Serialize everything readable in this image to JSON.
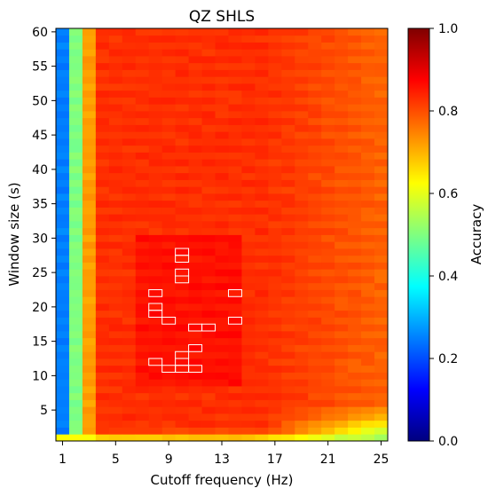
{
  "chart_data": {
    "type": "heatmap",
    "title": "QZ SHLS",
    "xlabel": "Cutoff frequency (Hz)",
    "ylabel": "Window size (s)",
    "colorbar_label": "Accuracy",
    "colormap": "jet",
    "x_range": [
      1,
      25
    ],
    "y_range": [
      1,
      60
    ],
    "x_ticks": [
      1,
      5,
      9,
      13,
      17,
      21,
      25
    ],
    "y_ticks": [
      5,
      10,
      15,
      20,
      25,
      30,
      35,
      40,
      45,
      50,
      55,
      60
    ],
    "color_range": [
      0.0,
      1.0
    ],
    "colorbar_ticks": [
      "0.0",
      "0.2",
      "0.4",
      "0.6",
      "0.8",
      "1.0"
    ],
    "approx_values": {
      "x1_column": 0.25,
      "x2_column": 0.5,
      "x3_column": 0.72,
      "plateau": 0.83,
      "best_region": 0.86,
      "high_frequency_low_window": 0.55,
      "y1_row": 0.68
    },
    "highlighted_cells": [
      [
        10,
        28
      ],
      [
        10,
        27
      ],
      [
        10,
        25
      ],
      [
        10,
        24
      ],
      [
        8,
        22
      ],
      [
        8,
        20
      ],
      [
        8,
        19
      ],
      [
        9,
        18
      ],
      [
        14,
        22
      ],
      [
        14,
        18
      ],
      [
        11,
        17
      ],
      [
        12,
        17
      ],
      [
        11,
        14
      ],
      [
        10,
        13
      ],
      [
        8,
        12
      ],
      [
        9,
        11
      ],
      [
        10,
        12
      ],
      [
        10,
        11
      ],
      [
        11,
        11
      ]
    ]
  }
}
